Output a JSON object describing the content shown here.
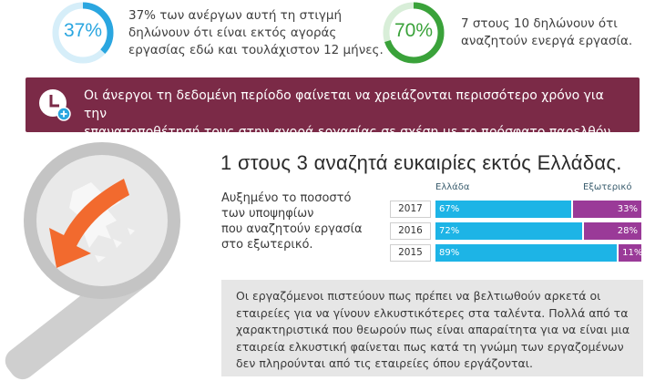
{
  "stats": [
    {
      "percent": "37%",
      "value": 0.37,
      "color": "#2aa6e0",
      "track": "#d6eef9",
      "text_lines": [
        "37% των ανέργων αυτή τη στιγμή",
        "δηλώνουν ότι είναι εκτός αγοράς",
        "εργασίας εδώ και τουλάχιστον 12 μήνες."
      ]
    },
    {
      "percent": "70%",
      "value": 0.7,
      "color": "#3aa23a",
      "track": "#d8eed8",
      "text_lines": [
        "7 στους 10 δηλώνουν ότι",
        "αναζητούν ενεργά εργασία."
      ]
    }
  ],
  "banner": {
    "icon": "clock-plus-icon",
    "lines": [
      "Οι άνεργοι τη δεδομένη περίοδο φαίνεται να χρειάζονται περισσότερο χρόνο για την",
      "επανατοποθέτησή τους στην αγορά εργασίας σε σχέση με το πρόσφατο παρελθόν."
    ]
  },
  "headline": "1 στους 3 αναζητά ευκαιρίες εκτός Ελλάδας.",
  "subtext_lines": [
    "Αυξημένο το ποσοστό",
    "των υποψηφίων",
    "που αναζητούν εργασία",
    "στο εξωτερικό."
  ],
  "chart_data": {
    "type": "bar",
    "stacked": true,
    "orientation": "horizontal",
    "categories": [
      "2017",
      "2016",
      "2015"
    ],
    "series": [
      {
        "name": "Ελλάδα",
        "values": [
          67,
          72,
          89
        ],
        "labels": [
          "67%",
          "72%",
          "89%"
        ],
        "color": "#1db4e6"
      },
      {
        "name": "Εξωτερικό",
        "values": [
          33,
          28,
          11
        ],
        "labels": [
          "33%",
          "28%",
          "11%"
        ],
        "color": "#9a3a98"
      }
    ],
    "legend": "top"
  },
  "box_lines": [
    "Οι εργαζόμενοι πιστεύουν πως πρέπει να βελτιωθούν αρκετά οι",
    "εταιρείες για να γίνουν ελκυστικότερες στα ταλέντα. Πολλά από τα",
    "χαρακτηριστικά που θεωρούν πως είναι απαραίτητα για να είναι μια",
    "εταιρεία ελκυστική φαίνεται πως κατά τη γνώμη των εργαζομένων",
    "δεν πληρούνται από τις εταιρείες όπου εργάζονται."
  ],
  "illustration": {
    "icon": "magnifier-greece-arrow-icon",
    "accent": "#f26a2e"
  }
}
